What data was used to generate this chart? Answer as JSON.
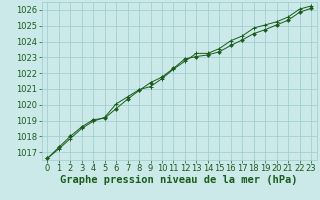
{
  "title": "Graphe pression niveau de la mer (hPa)",
  "background_color": "#cce9e9",
  "grid_color": "#99cccc",
  "line_color": "#1a5c1a",
  "marker_color": "#1a5c1a",
  "xlim": [
    -0.5,
    23.5
  ],
  "ylim": [
    1016.5,
    1026.5
  ],
  "yticks": [
    1017,
    1018,
    1019,
    1020,
    1021,
    1022,
    1023,
    1024,
    1025,
    1026
  ],
  "xticks": [
    0,
    1,
    2,
    3,
    4,
    5,
    6,
    7,
    8,
    9,
    10,
    11,
    12,
    13,
    14,
    15,
    16,
    17,
    18,
    19,
    20,
    21,
    22,
    23
  ],
  "series1_x": [
    0,
    1,
    2,
    3,
    4,
    5,
    6,
    7,
    8,
    9,
    10,
    11,
    12,
    13,
    14,
    15,
    16,
    17,
    18,
    19,
    20,
    21,
    22,
    23
  ],
  "series1_y": [
    1016.6,
    1017.3,
    1018.0,
    1018.6,
    1019.05,
    1019.15,
    1019.75,
    1020.35,
    1020.9,
    1021.4,
    1021.75,
    1022.3,
    1022.9,
    1023.05,
    1023.15,
    1023.35,
    1023.75,
    1024.1,
    1024.5,
    1024.75,
    1025.05,
    1025.35,
    1025.85,
    1026.1
  ],
  "series2_x": [
    0,
    1,
    2,
    3,
    4,
    5,
    6,
    7,
    8,
    9,
    10,
    11,
    12,
    13,
    14,
    15,
    16,
    17,
    18,
    19,
    20,
    21,
    22,
    23
  ],
  "series2_y": [
    1016.6,
    1017.2,
    1017.85,
    1018.5,
    1018.95,
    1019.2,
    1020.05,
    1020.5,
    1020.95,
    1021.15,
    1021.65,
    1022.25,
    1022.75,
    1023.25,
    1023.25,
    1023.55,
    1024.05,
    1024.35,
    1024.85,
    1025.05,
    1025.25,
    1025.55,
    1026.05,
    1026.25
  ],
  "title_color": "#1a5c1a",
  "title_fontsize": 7.5,
  "tick_fontsize": 6,
  "tick_color": "#1a5c1a"
}
